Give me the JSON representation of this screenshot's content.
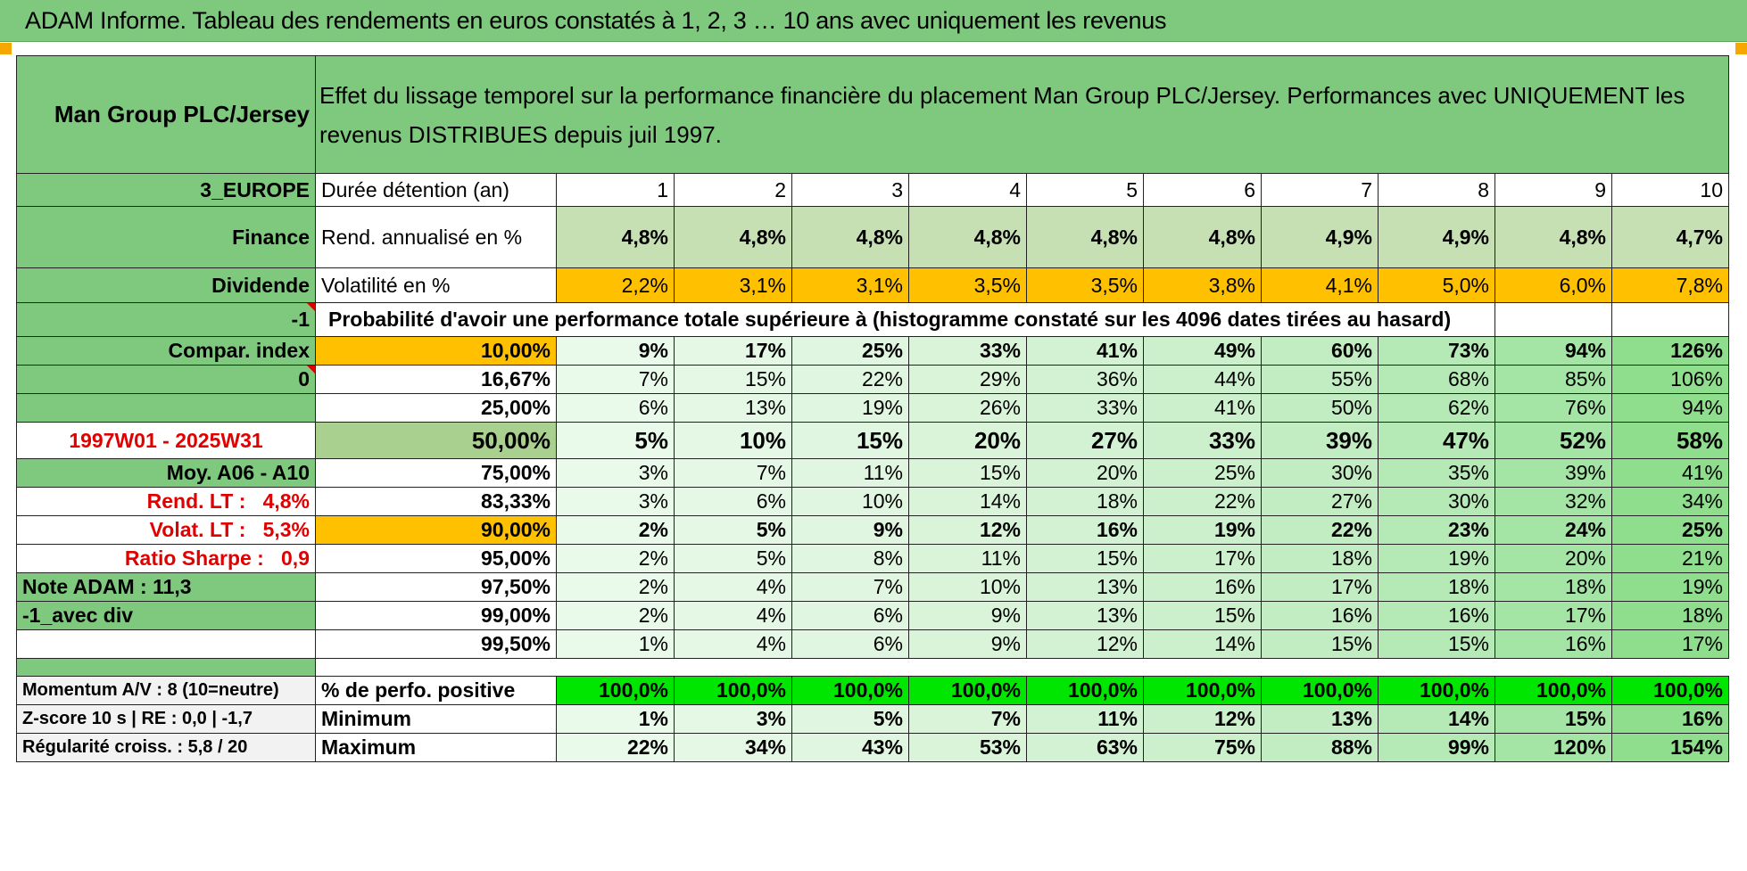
{
  "title": "ADAM Informe. Tableau des rendements en euros constatés à 1, 2, 3 … 10 ans avec uniquement les revenus",
  "header": {
    "fund_name": "Man Group PLC/Jersey",
    "description": "Effet du lissage temporel sur la performance financière du placement Man Group PLC/Jersey. Performances avec UNIQUEMENT les revenus DISTRIBUES depuis juil 1997."
  },
  "left": {
    "region": "3_EUROPE",
    "sector": "Finance",
    "type": "Dividende",
    "neg_one": "-1",
    "compar_index": "Compar. index",
    "zero": "0",
    "period": "1997W01 - 2025W31",
    "moy": "Moy. A06 - A10",
    "rend_lt_label": "Rend. LT :",
    "rend_lt_value": "4,8%",
    "volat_lt_label": "Volat. LT :",
    "volat_lt_value": "5,3%",
    "sharpe_label": "Ratio Sharpe :",
    "sharpe_value": "0,9",
    "note": "Note ADAM : 11,3",
    "avec_div": "-1_avec div",
    "momentum": "Momentum A/V : 8 (10=neutre)",
    "zscore": "Z-score 10 s | RE : 0,0 | -1,7",
    "regularite": "Régularité croiss. : 5,8 / 20"
  },
  "labels": {
    "duree": "Durée détention (an)",
    "rend": "Rend. annualisé en %",
    "volat": "Volatilité en %",
    "proba": "Probabilité d'avoir une performance totale supérieure à (histogramme constaté sur les 4096 dates tirées au hasard)",
    "pct_pos": "% de perfo. positive",
    "minimum": "Minimum",
    "maximum": "Maximum"
  },
  "years": [
    "1",
    "2",
    "3",
    "4",
    "5",
    "6",
    "7",
    "8",
    "9",
    "10"
  ],
  "rend": [
    "4,8%",
    "4,8%",
    "4,8%",
    "4,8%",
    "4,8%",
    "4,8%",
    "4,9%",
    "4,9%",
    "4,8%",
    "4,7%"
  ],
  "volat": [
    "2,2%",
    "3,1%",
    "3,1%",
    "3,5%",
    "3,5%",
    "3,8%",
    "4,1%",
    "5,0%",
    "6,0%",
    "7,8%"
  ],
  "prob_rows": [
    {
      "p": "10,00%",
      "v": [
        "9%",
        "17%",
        "25%",
        "33%",
        "41%",
        "49%",
        "60%",
        "73%",
        "94%",
        "126%"
      ]
    },
    {
      "p": "16,67%",
      "v": [
        "7%",
        "15%",
        "22%",
        "29%",
        "36%",
        "44%",
        "55%",
        "68%",
        "85%",
        "106%"
      ]
    },
    {
      "p": "25,00%",
      "v": [
        "6%",
        "13%",
        "19%",
        "26%",
        "33%",
        "41%",
        "50%",
        "62%",
        "76%",
        "94%"
      ]
    },
    {
      "p": "50,00%",
      "v": [
        "5%",
        "10%",
        "15%",
        "20%",
        "27%",
        "33%",
        "39%",
        "47%",
        "52%",
        "58%"
      ]
    },
    {
      "p": "75,00%",
      "v": [
        "3%",
        "7%",
        "11%",
        "15%",
        "20%",
        "25%",
        "30%",
        "35%",
        "39%",
        "41%"
      ]
    },
    {
      "p": "83,33%",
      "v": [
        "3%",
        "6%",
        "10%",
        "14%",
        "18%",
        "22%",
        "27%",
        "30%",
        "32%",
        "34%"
      ]
    },
    {
      "p": "90,00%",
      "v": [
        "2%",
        "5%",
        "9%",
        "12%",
        "16%",
        "19%",
        "22%",
        "23%",
        "24%",
        "25%"
      ]
    },
    {
      "p": "95,00%",
      "v": [
        "2%",
        "5%",
        "8%",
        "11%",
        "15%",
        "17%",
        "18%",
        "19%",
        "20%",
        "21%"
      ]
    },
    {
      "p": "97,50%",
      "v": [
        "2%",
        "4%",
        "7%",
        "10%",
        "13%",
        "16%",
        "17%",
        "18%",
        "18%",
        "19%"
      ]
    },
    {
      "p": "99,00%",
      "v": [
        "2%",
        "4%",
        "6%",
        "9%",
        "13%",
        "15%",
        "16%",
        "16%",
        "17%",
        "18%"
      ]
    },
    {
      "p": "99,50%",
      "v": [
        "1%",
        "4%",
        "6%",
        "9%",
        "12%",
        "14%",
        "15%",
        "15%",
        "16%",
        "17%"
      ]
    }
  ],
  "pct_pos": [
    "100,0%",
    "100,0%",
    "100,0%",
    "100,0%",
    "100,0%",
    "100,0%",
    "100,0%",
    "100,0%",
    "100,0%",
    "100,0%"
  ],
  "minimum": [
    "1%",
    "3%",
    "5%",
    "7%",
    "11%",
    "12%",
    "13%",
    "14%",
    "15%",
    "16%"
  ],
  "maximum": [
    "22%",
    "34%",
    "43%",
    "53%",
    "63%",
    "75%",
    "88%",
    "99%",
    "120%",
    "154%"
  ]
}
